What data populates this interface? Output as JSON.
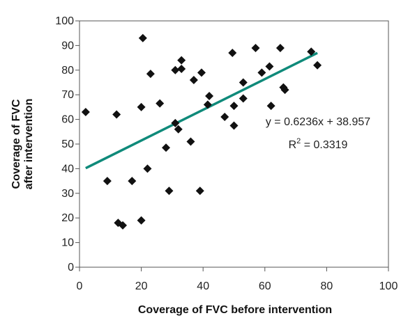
{
  "chart_data": {
    "type": "scatter",
    "title": "",
    "xlabel": "Coverage of FVC before intervention",
    "ylabel_line1": "Coverage of FVC",
    "ylabel_line2": "after intervention",
    "xlim": [
      0,
      100
    ],
    "ylim": [
      0,
      100
    ],
    "x_ticks": [
      0,
      20,
      40,
      60,
      80,
      100
    ],
    "y_ticks": [
      0,
      10,
      20,
      30,
      40,
      50,
      60,
      70,
      80,
      90,
      100
    ],
    "grid": false,
    "legend": "none",
    "marker": "diamond",
    "marker_color": "#111111",
    "trendline_color": "#0f8a7a",
    "points": [
      {
        "x": 2,
        "y": 63
      },
      {
        "x": 9,
        "y": 35
      },
      {
        "x": 12,
        "y": 62
      },
      {
        "x": 12.5,
        "y": 18
      },
      {
        "x": 14,
        "y": 17
      },
      {
        "x": 17,
        "y": 35
      },
      {
        "x": 20,
        "y": 65
      },
      {
        "x": 20,
        "y": 19
      },
      {
        "x": 20.5,
        "y": 93
      },
      {
        "x": 22,
        "y": 40
      },
      {
        "x": 23,
        "y": 78.5
      },
      {
        "x": 26,
        "y": 66.5
      },
      {
        "x": 28,
        "y": 48.5
      },
      {
        "x": 29,
        "y": 31
      },
      {
        "x": 31,
        "y": 80
      },
      {
        "x": 31,
        "y": 58.5
      },
      {
        "x": 32,
        "y": 56
      },
      {
        "x": 33,
        "y": 84
      },
      {
        "x": 33,
        "y": 80.5
      },
      {
        "x": 36,
        "y": 51
      },
      {
        "x": 37,
        "y": 76
      },
      {
        "x": 39,
        "y": 31
      },
      {
        "x": 39.5,
        "y": 79
      },
      {
        "x": 41.5,
        "y": 66
      },
      {
        "x": 42,
        "y": 69.5
      },
      {
        "x": 47,
        "y": 61
      },
      {
        "x": 49.5,
        "y": 87
      },
      {
        "x": 50,
        "y": 65.5
      },
      {
        "x": 50,
        "y": 57.5
      },
      {
        "x": 53,
        "y": 75
      },
      {
        "x": 53,
        "y": 68.5
      },
      {
        "x": 57,
        "y": 89
      },
      {
        "x": 59,
        "y": 79
      },
      {
        "x": 61.5,
        "y": 81.5
      },
      {
        "x": 62,
        "y": 65.5
      },
      {
        "x": 65,
        "y": 89
      },
      {
        "x": 66,
        "y": 73
      },
      {
        "x": 66.5,
        "y": 72
      },
      {
        "x": 75,
        "y": 87.5
      },
      {
        "x": 77,
        "y": 82
      }
    ],
    "trendline": {
      "slope": 0.6236,
      "intercept": 38.957,
      "x_start": 2,
      "x_end": 77
    },
    "annotations": {
      "equation": "y = 0.6236x + 38.957",
      "r2_prefix": "R",
      "r2_superscript": "2",
      "r2_suffix": " = 0.3319"
    }
  }
}
